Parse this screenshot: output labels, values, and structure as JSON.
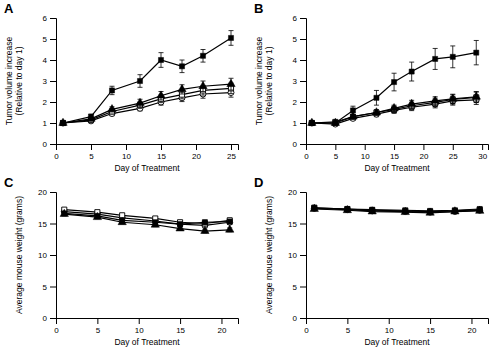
{
  "chart_data": [
    {
      "type": "line",
      "title": "A",
      "x_label": "Day of Treatment",
      "y_label": "Tumor volume increase\n(Relative to day 1)",
      "x": [
        1,
        5,
        8,
        12,
        15,
        18,
        21,
        25
      ],
      "xlim": [
        0,
        26
      ],
      "ylim": [
        0,
        6
      ],
      "xticks": [
        0,
        5,
        10,
        15,
        20,
        25
      ],
      "yticks": [
        0,
        1,
        2,
        3,
        4,
        5,
        6
      ],
      "grid": false,
      "series": [
        {
          "color": "#000000",
          "marker": "square",
          "values": [
            1.0,
            1.3,
            2.55,
            3.0,
            4.0,
            3.7,
            4.2,
            5.05
          ],
          "errors": [
            0.05,
            0.12,
            0.2,
            0.3,
            0.35,
            0.3,
            0.3,
            0.35
          ]
        },
        {
          "color": "#000000",
          "marker": "triangle",
          "values": [
            1.0,
            1.2,
            1.65,
            1.95,
            2.3,
            2.6,
            2.75,
            2.85
          ],
          "errors": [
            0.05,
            0.1,
            0.12,
            0.18,
            0.2,
            0.22,
            0.25,
            0.28
          ]
        },
        {
          "color": "#000000",
          "marker": "square-open",
          "values": [
            1.0,
            1.15,
            1.55,
            1.85,
            2.15,
            2.35,
            2.55,
            2.65
          ],
          "errors": [
            0.05,
            0.1,
            0.12,
            0.15,
            0.18,
            0.2,
            0.22,
            0.25
          ]
        },
        {
          "color": "#000000",
          "marker": "circle-open",
          "values": [
            1.0,
            1.1,
            1.45,
            1.7,
            2.0,
            2.2,
            2.38,
            2.45
          ],
          "errors": [
            0.04,
            0.08,
            0.1,
            0.12,
            0.15,
            0.18,
            0.2,
            0.22
          ]
        }
      ]
    },
    {
      "type": "line",
      "title": "B",
      "x_label": "Day of Treatment",
      "y_label": "Tumor volume increase\n(Relative to day 1)",
      "x": [
        1,
        5,
        8,
        12,
        15,
        18,
        22,
        25,
        29
      ],
      "xlim": [
        0,
        31
      ],
      "ylim": [
        0,
        6
      ],
      "xticks": [
        0,
        5,
        10,
        15,
        20,
        25,
        30
      ],
      "yticks": [
        0,
        1,
        2,
        3,
        4,
        5,
        6
      ],
      "grid": false,
      "series": [
        {
          "color": "#000000",
          "marker": "square",
          "values": [
            1.0,
            1.0,
            1.6,
            2.2,
            2.95,
            3.45,
            4.05,
            4.15,
            4.35
          ],
          "errors": [
            0.05,
            0.1,
            0.2,
            0.35,
            0.42,
            0.45,
            0.5,
            0.52,
            0.58
          ]
        },
        {
          "color": "#000000",
          "marker": "triangle",
          "values": [
            1.0,
            1.0,
            1.3,
            1.5,
            1.7,
            1.9,
            2.05,
            2.15,
            2.25
          ],
          "errors": [
            0.04,
            0.08,
            0.1,
            0.12,
            0.15,
            0.18,
            0.2,
            0.22,
            0.25
          ]
        },
        {
          "color": "#000000",
          "marker": "square-open",
          "values": [
            1.0,
            1.05,
            1.3,
            1.5,
            1.65,
            1.82,
            1.98,
            2.12,
            2.22
          ],
          "errors": [
            0.04,
            0.08,
            0.1,
            0.12,
            0.15,
            0.17,
            0.2,
            0.22,
            0.25
          ]
        },
        {
          "color": "#000000",
          "marker": "circle-open",
          "values": [
            1.0,
            0.95,
            1.22,
            1.42,
            1.6,
            1.75,
            1.9,
            2.05,
            2.1
          ],
          "errors": [
            0.04,
            0.07,
            0.1,
            0.12,
            0.14,
            0.16,
            0.18,
            0.2,
            0.22
          ]
        }
      ]
    },
    {
      "type": "line",
      "title": "C",
      "x_label": "Day of Treatment",
      "y_label": "Average mouse weight (grams)",
      "x": [
        1,
        5,
        8,
        12,
        15,
        18,
        21
      ],
      "xlim": [
        0,
        22
      ],
      "ylim": [
        0,
        20
      ],
      "xticks": [
        0,
        5,
        10,
        15,
        20
      ],
      "yticks": [
        0,
        5,
        10,
        15,
        20
      ],
      "grid": false,
      "series": [
        {
          "color": "#000000",
          "marker": "square",
          "values": [
            16.6,
            16.2,
            15.5,
            15.2,
            14.9,
            15.2,
            15.3
          ],
          "errors": [
            0.25,
            0.25,
            0.3,
            0.3,
            0.3,
            0.35,
            0.35
          ]
        },
        {
          "color": "#000000",
          "marker": "triangle",
          "values": [
            16.5,
            16.0,
            15.2,
            14.8,
            14.2,
            13.8,
            14.0
          ],
          "errors": [
            0.25,
            0.25,
            0.25,
            0.3,
            0.3,
            0.3,
            0.3
          ]
        },
        {
          "color": "#000000",
          "marker": "square-open",
          "values": [
            17.2,
            16.8,
            16.3,
            15.8,
            15.2,
            15.0,
            15.5
          ],
          "errors": [
            0.25,
            0.25,
            0.3,
            0.3,
            0.3,
            0.35,
            0.35
          ]
        },
        {
          "color": "#000000",
          "marker": "circle-open",
          "values": [
            16.9,
            16.5,
            15.9,
            15.4,
            14.9,
            14.7,
            15.2
          ],
          "errors": [
            0.25,
            0.25,
            0.28,
            0.3,
            0.3,
            0.32,
            0.35
          ]
        }
      ]
    },
    {
      "type": "line",
      "title": "D",
      "x_label": "Day of Treatment",
      "y_label": "Average mouse weight (grams)",
      "x": [
        1,
        5,
        8,
        12,
        15,
        18,
        21
      ],
      "xlim": [
        0,
        22
      ],
      "ylim": [
        0,
        20
      ],
      "xticks": [
        0,
        5,
        10,
        15,
        20
      ],
      "yticks": [
        0,
        5,
        10,
        15,
        20
      ],
      "grid": false,
      "series": [
        {
          "color": "#000000",
          "marker": "square",
          "values": [
            17.5,
            17.3,
            17.2,
            17.1,
            17.0,
            17.1,
            17.3
          ],
          "errors": [
            0.2,
            0.2,
            0.2,
            0.2,
            0.2,
            0.2,
            0.2
          ]
        },
        {
          "color": "#000000",
          "marker": "triangle",
          "values": [
            17.3,
            17.1,
            16.9,
            16.8,
            16.7,
            16.9,
            17.0
          ],
          "errors": [
            0.2,
            0.2,
            0.2,
            0.2,
            0.2,
            0.2,
            0.2
          ]
        },
        {
          "color": "#000000",
          "marker": "square-open",
          "values": [
            17.5,
            17.3,
            17.1,
            17.0,
            16.9,
            17.0,
            17.2
          ],
          "errors": [
            0.2,
            0.2,
            0.2,
            0.2,
            0.2,
            0.2,
            0.2
          ]
        },
        {
          "color": "#000000",
          "marker": "circle-open",
          "values": [
            17.4,
            17.2,
            17.0,
            16.9,
            16.8,
            16.9,
            17.1
          ],
          "errors": [
            0.2,
            0.2,
            0.2,
            0.2,
            0.2,
            0.2,
            0.2
          ]
        }
      ]
    }
  ]
}
